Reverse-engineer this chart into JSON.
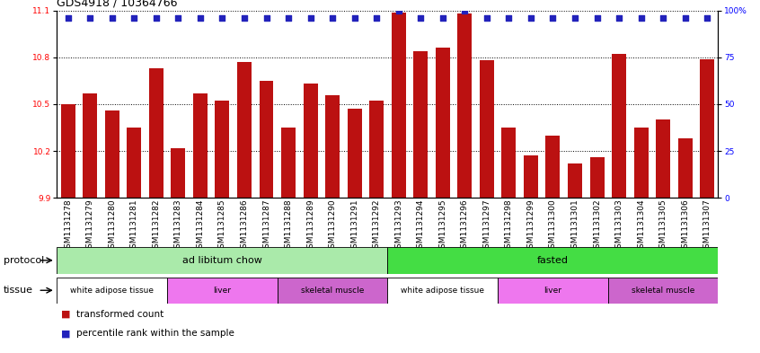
{
  "title": "GDS4918 / 10364766",
  "samples": [
    "GSM1131278",
    "GSM1131279",
    "GSM1131280",
    "GSM1131281",
    "GSM1131282",
    "GSM1131283",
    "GSM1131284",
    "GSM1131285",
    "GSM1131286",
    "GSM1131287",
    "GSM1131288",
    "GSM1131289",
    "GSM1131290",
    "GSM1131291",
    "GSM1131292",
    "GSM1131293",
    "GSM1131294",
    "GSM1131295",
    "GSM1131296",
    "GSM1131297",
    "GSM1131298",
    "GSM1131299",
    "GSM1131300",
    "GSM1131301",
    "GSM1131302",
    "GSM1131303",
    "GSM1131304",
    "GSM1131305",
    "GSM1131306",
    "GSM1131307"
  ],
  "bar_values": [
    10.5,
    10.57,
    10.46,
    10.35,
    10.73,
    10.22,
    10.57,
    10.52,
    10.77,
    10.65,
    10.35,
    10.63,
    10.56,
    10.47,
    10.52,
    11.09,
    10.84,
    10.86,
    11.08,
    10.78,
    10.35,
    10.17,
    10.3,
    10.12,
    10.16,
    10.82,
    10.35,
    10.4,
    10.28,
    10.79
  ],
  "percentile_values": [
    96,
    96,
    96,
    96,
    96,
    96,
    96,
    96,
    96,
    96,
    96,
    96,
    96,
    96,
    96,
    100,
    96,
    96,
    100,
    96,
    96,
    96,
    96,
    96,
    96,
    96,
    96,
    96,
    96,
    96
  ],
  "ylim_left": [
    9.9,
    11.1
  ],
  "ylim_right": [
    0,
    100
  ],
  "yticks_left": [
    9.9,
    10.2,
    10.5,
    10.8,
    11.1
  ],
  "yticks_right": [
    0,
    25,
    50,
    75,
    100
  ],
  "bar_color": "#bb1111",
  "dot_color": "#2222bb",
  "background_color": "#ffffff",
  "protocol_groups": [
    {
      "label": "ad libitum chow",
      "start": 0,
      "end": 14,
      "color": "#aaeaaa"
    },
    {
      "label": "fasted",
      "start": 15,
      "end": 29,
      "color": "#44dd44"
    }
  ],
  "tissue_groups": [
    {
      "label": "white adipose tissue",
      "start": 0,
      "end": 4,
      "color": "#ffffff"
    },
    {
      "label": "liver",
      "start": 5,
      "end": 9,
      "color": "#ee77ee"
    },
    {
      "label": "skeletal muscle",
      "start": 10,
      "end": 14,
      "color": "#cc66cc"
    },
    {
      "label": "white adipose tissue",
      "start": 15,
      "end": 19,
      "color": "#ffffff"
    },
    {
      "label": "liver",
      "start": 20,
      "end": 24,
      "color": "#ee77ee"
    },
    {
      "label": "skeletal muscle",
      "start": 25,
      "end": 29,
      "color": "#cc66cc"
    }
  ],
  "legend_items": [
    {
      "label": "transformed count",
      "color": "#bb1111"
    },
    {
      "label": "percentile rank within the sample",
      "color": "#2222bb"
    }
  ],
  "title_fontsize": 9,
  "tick_fontsize": 6.5,
  "label_fontsize": 8,
  "row_label_fontsize": 8,
  "annot_fontsize": 8
}
